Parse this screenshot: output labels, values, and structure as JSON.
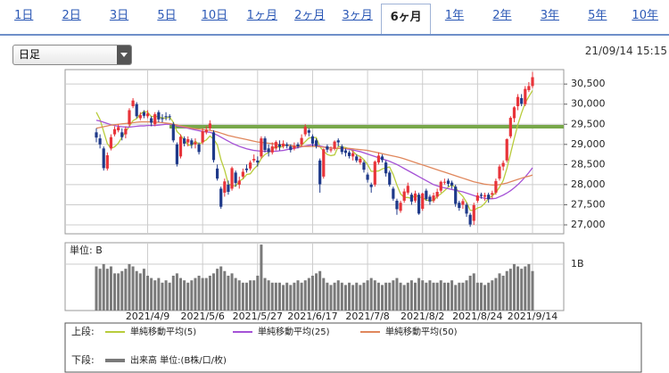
{
  "tabs": [
    {
      "label": "1日"
    },
    {
      "label": "2日"
    },
    {
      "label": "3日"
    },
    {
      "label": "5日"
    },
    {
      "label": "10日"
    },
    {
      "label": "1ヶ月"
    },
    {
      "label": "2ヶ月"
    },
    {
      "label": "3ヶ月"
    },
    {
      "label": "6ヶ月",
      "selected": true
    },
    {
      "label": "1年"
    },
    {
      "label": "2年"
    },
    {
      "label": "3年"
    },
    {
      "label": "5年"
    },
    {
      "label": "10年"
    }
  ],
  "dropdown": "日足",
  "timestamp": "21/09/14 15:15",
  "chart_data": {
    "type": "candlestick",
    "categories": [
      null,
      null,
      null,
      null,
      null,
      null,
      null,
      null,
      null,
      null,
      null,
      null,
      null,
      null,
      "2021/4/9",
      null,
      null,
      null,
      null,
      null,
      null,
      null,
      null,
      null,
      null,
      null,
      null,
      null,
      null,
      "2021/5/6",
      null,
      null,
      null,
      null,
      null,
      null,
      null,
      null,
      null,
      null,
      null,
      null,
      null,
      null,
      "2021/5/27",
      null,
      null,
      null,
      null,
      null,
      null,
      null,
      null,
      null,
      null,
      null,
      null,
      null,
      null,
      "2021/6/17",
      null,
      null,
      null,
      null,
      null,
      null,
      null,
      null,
      null,
      null,
      null,
      null,
      null,
      null,
      "2021/7/8",
      null,
      null,
      null,
      null,
      null,
      null,
      null,
      null,
      null,
      null,
      null,
      null,
      null,
      null,
      "2021/8/2",
      null,
      null,
      null,
      null,
      null,
      null,
      null,
      null,
      null,
      null,
      null,
      null,
      null,
      null,
      "2021/8/24",
      null,
      null,
      null,
      null,
      null,
      null,
      null,
      null,
      null,
      null,
      null,
      null,
      null,
      null,
      "2021/9/14"
    ],
    "open": [
      29300,
      29150,
      28900,
      28400,
      28900,
      29250,
      29350,
      29300,
      29250,
      29500,
      29950,
      30000,
      29650,
      29800,
      29700,
      29650,
      29500,
      29800,
      29650,
      29700,
      29700,
      29500,
      29000,
      28700,
      29150,
      29050,
      29100,
      29000,
      29000,
      29050,
      29300,
      29400,
      29300,
      28400,
      27900,
      27800,
      28000,
      27900,
      28300,
      28000,
      28200,
      28400,
      28400,
      28600,
      28600,
      28700,
      29150,
      28900,
      28800,
      28900,
      29000,
      28950,
      29000,
      28950,
      28900,
      29000,
      29000,
      29250,
      29350,
      29200,
      29100,
      28600,
      28200,
      28950,
      28850,
      28900,
      29100,
      28950,
      28850,
      28800,
      28700,
      28700,
      28550,
      28550,
      28250,
      28000,
      28000,
      28550,
      28700,
      28550,
      28300,
      27900,
      27600,
      27350,
      27600,
      27800,
      27750,
      27600,
      27750,
      27400,
      27850,
      27700,
      27600,
      27700,
      27850,
      28050,
      28100,
      28050,
      27950,
      27550,
      27500,
      27500,
      27250,
      27100,
      27600,
      27750,
      27700,
      27750,
      27750,
      27800,
      28150,
      28450,
      28600,
      29200,
      29650,
      29950,
      30150,
      30000,
      30350,
      30450
    ],
    "high": [
      29400,
      29250,
      28950,
      28800,
      29250,
      29450,
      29500,
      29400,
      29450,
      29900,
      30150,
      30050,
      29800,
      29850,
      29850,
      29700,
      29800,
      29850,
      29750,
      29800,
      29750,
      29550,
      29050,
      29250,
      29200,
      29200,
      29150,
      29150,
      29050,
      29400,
      29450,
      29600,
      29350,
      28500,
      27950,
      28150,
      28100,
      28450,
      28350,
      28200,
      28400,
      28500,
      28600,
      28750,
      28700,
      29200,
      29200,
      29000,
      29050,
      29100,
      29100,
      29100,
      29050,
      29000,
      29050,
      29050,
      29250,
      29500,
      29400,
      29250,
      29150,
      28650,
      28900,
      29000,
      28950,
      29100,
      29150,
      29000,
      28900,
      28850,
      28850,
      28750,
      28700,
      28600,
      28300,
      28050,
      28600,
      28800,
      28750,
      28600,
      28350,
      27950,
      27650,
      27600,
      27900,
      28050,
      27800,
      27850,
      27800,
      27800,
      27900,
      27750,
      27800,
      27900,
      28100,
      28150,
      28150,
      28100,
      28000,
      27600,
      27650,
      27550,
      27300,
      27550,
      27800,
      27800,
      27800,
      27800,
      27850,
      28150,
      28500,
      28600,
      29150,
      29700,
      29950,
      30250,
      30250,
      30450,
      30550,
      30800
    ],
    "low": [
      29050,
      28900,
      28350,
      28350,
      28850,
      29200,
      29300,
      29100,
      29150,
      29450,
      29900,
      29650,
      29600,
      29650,
      29650,
      29450,
      29450,
      29550,
      29550,
      29600,
      29600,
      29050,
      28450,
      28650,
      28950,
      28950,
      28900,
      28900,
      28750,
      29000,
      29250,
      29350,
      28550,
      28100,
      27400,
      27700,
      27750,
      27850,
      27950,
      27900,
      28150,
      28300,
      28350,
      28550,
      28450,
      28650,
      28800,
      28700,
      28750,
      28850,
      28850,
      28900,
      28900,
      28800,
      28850,
      28900,
      28950,
      29200,
      29200,
      28950,
      28900,
      27800,
      28150,
      28800,
      28800,
      28850,
      28950,
      28750,
      28700,
      28650,
      28600,
      28550,
      28500,
      28300,
      28050,
      27800,
      27950,
      28500,
      28550,
      28200,
      27950,
      27600,
      27250,
      27300,
      27550,
      27750,
      27500,
      27550,
      27250,
      27350,
      27600,
      27500,
      27550,
      27650,
      27800,
      28000,
      27950,
      27900,
      27450,
      27350,
      27400,
      27200,
      26950,
      27000,
      27550,
      27650,
      27600,
      27550,
      27650,
      27750,
      28100,
      28350,
      28550,
      29150,
      29550,
      29850,
      29950,
      29950,
      30300,
      30400
    ],
    "close": [
      29170,
      29000,
      28410,
      28730,
      29180,
      29380,
      29430,
      29180,
      29390,
      29850,
      30090,
      29700,
      29730,
      29710,
      29770,
      29540,
      29750,
      29620,
      29640,
      29680,
      29690,
      29100,
      28510,
      29190,
      29020,
      29130,
      28990,
      29050,
      28810,
      29330,
      29360,
      29520,
      28610,
      28150,
      27450,
      28080,
      27820,
      28410,
      28040,
      28100,
      28320,
      28360,
      28550,
      28640,
      28550,
      29150,
      28860,
      28810,
      28950,
      29060,
      28940,
      29020,
      28960,
      28860,
      28960,
      28950,
      29160,
      29440,
      29290,
      29020,
      28960,
      28010,
      28880,
      28870,
      28880,
      29070,
      29050,
      28810,
      28790,
      28710,
      28780,
      28600,
      28640,
      28370,
      28120,
      27940,
      28570,
      28720,
      28610,
      28280,
      28000,
      27650,
      27390,
      27550,
      27830,
      27970,
      27580,
      27780,
      27280,
      27780,
      27640,
      27580,
      27730,
      27820,
      28070,
      28070,
      28020,
      27980,
      27520,
      27420,
      27590,
      27280,
      27010,
      27490,
      27730,
      27720,
      27740,
      27640,
      27790,
      28090,
      28450,
      28540,
      29130,
      29660,
      29920,
      30180,
      30010,
      30380,
      30450,
      30670
    ],
    "up_color": "#e8343a",
    "down_color": "#1f3a8a",
    "ylim": [
      26778,
      30859
    ],
    "yticks": [
      {
        "value": 27000,
        "label": "27,000"
      },
      {
        "value": 27500,
        "label": "27,500"
      },
      {
        "value": 28000,
        "label": "28,000"
      },
      {
        "value": 28500,
        "label": "28,500"
      },
      {
        "value": 29000,
        "label": "29,000"
      },
      {
        "value": 29500,
        "label": "29,500"
      },
      {
        "value": 30000,
        "label": "30,000"
      },
      {
        "value": 30500,
        "label": "30,500"
      }
    ],
    "grid": true,
    "hline": {
      "value": 29440,
      "color": "#78a84a"
    },
    "upper_label": "上段:",
    "lower_label": "下段:",
    "series": [
      {
        "name": "単純移動平均(5)",
        "color": "#b8cc3c",
        "values": [
          29800,
          29620,
          29320,
          29020,
          28900,
          28940,
          29030,
          29180,
          29310,
          29450,
          29590,
          29640,
          29750,
          29820,
          29800,
          29690,
          29700,
          29680,
          29660,
          29650,
          29680,
          29550,
          29320,
          29230,
          29100,
          28990,
          28970,
          29080,
          29000,
          29060,
          29110,
          29210,
          29130,
          28990,
          28620,
          28360,
          28020,
          27980,
          27960,
          28090,
          28140,
          28250,
          28270,
          28390,
          28480,
          28650,
          28750,
          28800,
          28860,
          28970,
          28920,
          28960,
          28990,
          28970,
          28950,
          28950,
          28980,
          29070,
          29160,
          29170,
          29170,
          28940,
          28830,
          28750,
          28720,
          28740,
          28950,
          28940,
          28920,
          28890,
          28830,
          28740,
          28700,
          28620,
          28500,
          28330,
          28330,
          28340,
          28390,
          28420,
          28440,
          28250,
          27990,
          27770,
          27680,
          27680,
          27660,
          27740,
          27690,
          27680,
          27610,
          27610,
          27600,
          27710,
          27770,
          27850,
          27940,
          27990,
          27930,
          27800,
          27710,
          27560,
          27360,
          27360,
          27420,
          27450,
          27540,
          27660,
          27720,
          27800,
          27940,
          28100,
          28400,
          28770,
          29140,
          29490,
          29780,
          30030,
          30190,
          30340
        ]
      },
      {
        "name": "単純移動平均(25)",
        "color": "#a552d6",
        "values": [
          29600,
          29580,
          29550,
          29520,
          29490,
          29470,
          29450,
          29440,
          29430,
          29430,
          29440,
          29450,
          29460,
          29460,
          29470,
          29470,
          29470,
          29480,
          29490,
          29500,
          29500,
          29490,
          29460,
          29440,
          29420,
          29400,
          29380,
          29360,
          29340,
          29320,
          29310,
          29300,
          29270,
          29230,
          29180,
          29130,
          29080,
          29030,
          28990,
          28950,
          28920,
          28890,
          28870,
          28850,
          28840,
          28830,
          28830,
          28830,
          28830,
          28830,
          28840,
          28850,
          28870,
          28890,
          28900,
          28920,
          28940,
          28960,
          28980,
          28990,
          28980,
          28960,
          28940,
          28920,
          28910,
          28900,
          28900,
          28900,
          28890,
          28880,
          28860,
          28840,
          28820,
          28790,
          28760,
          28730,
          28700,
          28670,
          28640,
          28610,
          28580,
          28540,
          28500,
          28450,
          28400,
          28350,
          28300,
          28250,
          28200,
          28150,
          28100,
          28050,
          28000,
          27970,
          27940,
          27920,
          27900,
          27880,
          27860,
          27840,
          27820,
          27790,
          27760,
          27730,
          27700,
          27680,
          27660,
          27650,
          27650,
          27660,
          27700,
          27740,
          27790,
          27850,
          27920,
          28000,
          28090,
          28190,
          28300,
          28420
        ]
      },
      {
        "name": "単純移動平均(50)",
        "color": "#e0875c",
        "values": [
          29400,
          29420,
          29440,
          29460,
          29480,
          29490,
          29500,
          29510,
          29520,
          29530,
          29540,
          29550,
          29560,
          29560,
          29560,
          29560,
          29550,
          29550,
          29540,
          29530,
          29520,
          29500,
          29480,
          29460,
          29440,
          29420,
          29400,
          29390,
          29380,
          29370,
          29360,
          29350,
          29330,
          29310,
          29280,
          29250,
          29220,
          29200,
          29180,
          29160,
          29140,
          29120,
          29100,
          29080,
          29060,
          29050,
          29040,
          29030,
          29020,
          29010,
          29000,
          28990,
          28980,
          28970,
          28960,
          28950,
          28950,
          28950,
          28950,
          28950,
          28950,
          28940,
          28930,
          28920,
          28910,
          28900,
          28900,
          28900,
          28900,
          28900,
          28890,
          28880,
          28870,
          28860,
          28850,
          28830,
          28810,
          28790,
          28770,
          28750,
          28730,
          28710,
          28690,
          28670,
          28640,
          28610,
          28580,
          28550,
          28520,
          28490,
          28460,
          28430,
          28400,
          28370,
          28340,
          28310,
          28280,
          28250,
          28220,
          28190,
          28160,
          28130,
          28100,
          28070,
          28050,
          28030,
          28010,
          28000,
          27990,
          27990,
          28000,
          28020,
          28040,
          28070,
          28100,
          28130,
          28160,
          28190,
          28210,
          28240
        ]
      }
    ],
    "volume": {
      "name": "出来高 単位:(B株/口/枚)",
      "unit_label": "単位: B",
      "color": "#7a7a7a",
      "ylim": [
        0,
        1.46
      ],
      "yticks": [
        {
          "value": 1,
          "label": "1B"
        }
      ],
      "values": [
        0.95,
        0.9,
        1.0,
        0.9,
        0.95,
        0.8,
        0.8,
        0.85,
        0.9,
        1.0,
        0.95,
        0.85,
        0.8,
        0.9,
        0.75,
        0.7,
        0.65,
        0.7,
        0.6,
        0.65,
        0.6,
        0.75,
        0.8,
        0.7,
        0.65,
        0.6,
        0.65,
        0.7,
        0.75,
        0.7,
        0.7,
        0.75,
        0.8,
        0.9,
        0.95,
        0.85,
        0.75,
        0.8,
        0.7,
        0.65,
        0.6,
        0.6,
        0.65,
        0.65,
        0.75,
        1.42,
        0.7,
        0.65,
        0.6,
        0.6,
        0.6,
        0.55,
        0.6,
        0.55,
        0.6,
        0.65,
        0.6,
        0.65,
        0.7,
        0.75,
        0.8,
        0.85,
        0.7,
        0.6,
        0.55,
        0.6,
        0.65,
        0.6,
        0.55,
        0.6,
        0.55,
        0.6,
        0.55,
        0.6,
        0.65,
        0.7,
        0.65,
        0.6,
        0.55,
        0.6,
        0.6,
        0.65,
        0.7,
        0.6,
        0.55,
        0.6,
        0.65,
        0.6,
        0.7,
        0.65,
        0.6,
        0.65,
        0.6,
        0.6,
        0.65,
        0.6,
        0.6,
        0.65,
        0.55,
        0.6,
        0.6,
        0.65,
        0.75,
        0.8,
        0.6,
        0.6,
        0.55,
        0.6,
        0.65,
        0.7,
        0.8,
        0.75,
        0.85,
        0.9,
        1.0,
        0.95,
        0.9,
        0.95,
        1.0,
        0.85
      ]
    }
  }
}
